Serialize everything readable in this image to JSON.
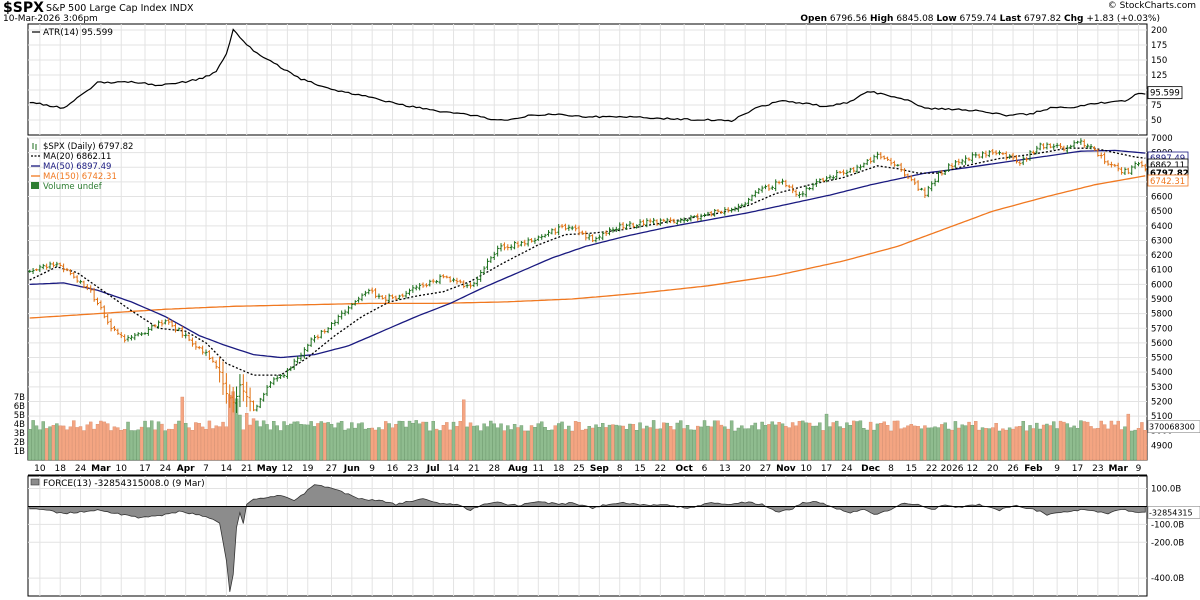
{
  "header": {
    "symbol": "$SPX",
    "name": "S&P 500 Large Cap Index",
    "exchange": "INDX",
    "date": "10-Mar-2026 3:06pm",
    "watermark": "© StockCharts.com",
    "open_label": "Open",
    "open": "6796.56",
    "high_label": "High",
    "high": "6845.08",
    "low_label": "Low",
    "low": "6759.74",
    "last_label": "Last",
    "last": "6797.82",
    "chg_label": "Chg",
    "chg": "+1.83 (+0.03%)"
  },
  "chart_data": [
    {
      "type": "line",
      "panel": "ATR",
      "title": "ATR(14) 95.599",
      "current_label": "95.599",
      "ylim": [
        25,
        210
      ],
      "y_ticks": [
        50,
        75,
        100,
        125,
        150,
        175,
        200
      ],
      "knots": [
        [
          0,
          80
        ],
        [
          10,
          70
        ],
        [
          15,
          90
        ],
        [
          20,
          112
        ],
        [
          30,
          114
        ],
        [
          38,
          108
        ],
        [
          44,
          112
        ],
        [
          50,
          118
        ],
        [
          55,
          130
        ],
        [
          58,
          160
        ],
        [
          60,
          200
        ],
        [
          62,
          188
        ],
        [
          66,
          165
        ],
        [
          72,
          145
        ],
        [
          80,
          118
        ],
        [
          90,
          100
        ],
        [
          100,
          88
        ],
        [
          110,
          75
        ],
        [
          120,
          65
        ],
        [
          130,
          58
        ],
        [
          138,
          50
        ],
        [
          142,
          50
        ],
        [
          148,
          58
        ],
        [
          155,
          60
        ],
        [
          165,
          55
        ],
        [
          172,
          56
        ],
        [
          180,
          54
        ],
        [
          190,
          52
        ],
        [
          200,
          50
        ],
        [
          207,
          48
        ],
        [
          210,
          58
        ],
        [
          215,
          72
        ],
        [
          222,
          82
        ],
        [
          228,
          78
        ],
        [
          235,
          72
        ],
        [
          242,
          80
        ],
        [
          247,
          98
        ],
        [
          250,
          95
        ],
        [
          258,
          85
        ],
        [
          264,
          70
        ],
        [
          272,
          68
        ],
        [
          280,
          65
        ],
        [
          288,
          58
        ],
        [
          295,
          60
        ],
        [
          302,
          72
        ],
        [
          307,
          70
        ],
        [
          314,
          78
        ],
        [
          318,
          80
        ],
        [
          323,
          82
        ],
        [
          327,
          95
        ],
        [
          329,
          93
        ]
      ],
      "grid": true
    },
    {
      "type": "ohlc",
      "panel": "price",
      "title": "$SPX (Daily) 6797.82",
      "legend": [
        {
          "name": "$SPX (Daily) 6797.82",
          "color": "#000000"
        },
        {
          "name": "MA(20) 6862.11",
          "color": "#000000",
          "style": "dotted"
        },
        {
          "name": "MA(50) 6897.49",
          "color": "#1a1a80"
        },
        {
          "name": "MA(150) 6742.31",
          "color": "#f07820"
        },
        {
          "name": "Volume undef",
          "color": "#2e7d32"
        }
      ],
      "right_labels": [
        "6897.49",
        "6862.11",
        "6797.82",
        "6742.31"
      ],
      "ylim": [
        4800,
        7000
      ],
      "y_ticks": [
        4900,
        5000,
        5100,
        5200,
        5300,
        5400,
        5500,
        5600,
        5700,
        5800,
        5900,
        6000,
        6100,
        6200,
        6300,
        6400,
        6500,
        6600,
        6700,
        6800,
        6900,
        7000
      ],
      "close_knots": [
        [
          0,
          6100
        ],
        [
          8,
          6140
        ],
        [
          12,
          6080
        ],
        [
          18,
          5950
        ],
        [
          24,
          5700
        ],
        [
          28,
          5620
        ],
        [
          34,
          5680
        ],
        [
          40,
          5750
        ],
        [
          46,
          5650
        ],
        [
          52,
          5520
        ],
        [
          56,
          5400
        ],
        [
          58,
          5250
        ],
        [
          60,
          5200
        ],
        [
          62,
          5300
        ],
        [
          66,
          5150
        ],
        [
          72,
          5350
        ],
        [
          76,
          5400
        ],
        [
          82,
          5600
        ],
        [
          88,
          5700
        ],
        [
          94,
          5850
        ],
        [
          100,
          5950
        ],
        [
          104,
          5900
        ],
        [
          110,
          5920
        ],
        [
          116,
          6000
        ],
        [
          122,
          6050
        ],
        [
          130,
          5980
        ],
        [
          138,
          6250
        ],
        [
          146,
          6280
        ],
        [
          152,
          6350
        ],
        [
          160,
          6400
        ],
        [
          166,
          6300
        ],
        [
          172,
          6380
        ],
        [
          180,
          6420
        ],
        [
          188,
          6430
        ],
        [
          196,
          6460
        ],
        [
          204,
          6500
        ],
        [
          210,
          6550
        ],
        [
          216,
          6650
        ],
        [
          222,
          6700
        ],
        [
          226,
          6600
        ],
        [
          232,
          6700
        ],
        [
          238,
          6750
        ],
        [
          244,
          6800
        ],
        [
          250,
          6880
        ],
        [
          256,
          6820
        ],
        [
          260,
          6700
        ],
        [
          264,
          6620
        ],
        [
          268,
          6750
        ],
        [
          274,
          6850
        ],
        [
          280,
          6880
        ],
        [
          286,
          6900
        ],
        [
          292,
          6830
        ],
        [
          298,
          6950
        ],
        [
          306,
          6930
        ],
        [
          310,
          6980
        ],
        [
          316,
          6870
        ],
        [
          320,
          6800
        ],
        [
          324,
          6760
        ],
        [
          327,
          6840
        ],
        [
          329,
          6798
        ]
      ],
      "ma20_knots": [
        [
          0,
          6030
        ],
        [
          8,
          6120
        ],
        [
          14,
          6080
        ],
        [
          22,
          5950
        ],
        [
          30,
          5820
        ],
        [
          38,
          5700
        ],
        [
          46,
          5680
        ],
        [
          52,
          5600
        ],
        [
          58,
          5460
        ],
        [
          66,
          5380
        ],
        [
          74,
          5380
        ],
        [
          82,
          5500
        ],
        [
          90,
          5650
        ],
        [
          98,
          5780
        ],
        [
          106,
          5880
        ],
        [
          114,
          5920
        ],
        [
          122,
          5950
        ],
        [
          130,
          6020
        ],
        [
          140,
          6150
        ],
        [
          150,
          6270
        ],
        [
          158,
          6340
        ],
        [
          166,
          6350
        ],
        [
          174,
          6370
        ],
        [
          184,
          6410
        ],
        [
          194,
          6450
        ],
        [
          204,
          6490
        ],
        [
          212,
          6540
        ],
        [
          220,
          6620
        ],
        [
          230,
          6680
        ],
        [
          240,
          6730
        ],
        [
          250,
          6810
        ],
        [
          256,
          6790
        ],
        [
          262,
          6760
        ],
        [
          268,
          6760
        ],
        [
          276,
          6810
        ],
        [
          286,
          6860
        ],
        [
          296,
          6890
        ],
        [
          306,
          6930
        ],
        [
          314,
          6930
        ],
        [
          320,
          6900
        ],
        [
          326,
          6870
        ],
        [
          329,
          6862
        ]
      ],
      "ma50_knots": [
        [
          0,
          6000
        ],
        [
          10,
          6010
        ],
        [
          20,
          5960
        ],
        [
          30,
          5880
        ],
        [
          40,
          5780
        ],
        [
          50,
          5650
        ],
        [
          58,
          5580
        ],
        [
          66,
          5520
        ],
        [
          74,
          5500
        ],
        [
          84,
          5520
        ],
        [
          94,
          5580
        ],
        [
          104,
          5680
        ],
        [
          114,
          5780
        ],
        [
          124,
          5870
        ],
        [
          134,
          5980
        ],
        [
          144,
          6080
        ],
        [
          154,
          6180
        ],
        [
          164,
          6260
        ],
        [
          176,
          6330
        ],
        [
          188,
          6390
        ],
        [
          200,
          6440
        ],
        [
          212,
          6490
        ],
        [
          224,
          6550
        ],
        [
          236,
          6610
        ],
        [
          248,
          6680
        ],
        [
          256,
          6720
        ],
        [
          264,
          6760
        ],
        [
          274,
          6790
        ],
        [
          286,
          6830
        ],
        [
          298,
          6870
        ],
        [
          310,
          6910
        ],
        [
          320,
          6915
        ],
        [
          329,
          6897
        ]
      ],
      "ma150_knots": [
        [
          0,
          5770
        ],
        [
          20,
          5800
        ],
        [
          40,
          5830
        ],
        [
          60,
          5850
        ],
        [
          80,
          5860
        ],
        [
          100,
          5870
        ],
        [
          120,
          5870
        ],
        [
          140,
          5880
        ],
        [
          160,
          5900
        ],
        [
          180,
          5940
        ],
        [
          200,
          5990
        ],
        [
          220,
          6060
        ],
        [
          240,
          6160
        ],
        [
          256,
          6260
        ],
        [
          270,
          6380
        ],
        [
          284,
          6500
        ],
        [
          300,
          6600
        ],
        [
          314,
          6680
        ],
        [
          329,
          6742
        ]
      ],
      "volume": {
        "labels": [
          "7B",
          "6B",
          "5B",
          "4B",
          "3B",
          "2B",
          "1B"
        ],
        "values_b": [
          7,
          6,
          5,
          4,
          3,
          2,
          1
        ],
        "ylim_b": [
          0,
          14
        ],
        "current_label": "370068300",
        "spikes": [
          [
            45,
            7.0
          ],
          [
            59,
            7.2
          ],
          [
            60,
            7.6
          ],
          [
            61,
            6.8
          ],
          [
            62,
            5.0
          ],
          [
            64,
            5.2
          ],
          [
            66,
            4.6
          ],
          [
            92,
            4.3
          ],
          [
            128,
            6.7
          ],
          [
            162,
            4.2
          ],
          [
            235,
            5.1
          ],
          [
            297,
            4.1
          ],
          [
            324,
            5.1
          ],
          [
            355,
            5.6
          ],
          [
            367,
            5.3
          ]
        ]
      },
      "x_labels": [
        "10",
        "18",
        "24",
        "Mar",
        "10",
        "17",
        "24",
        "Apr",
        "7",
        "14",
        "21",
        "May",
        "12",
        "19",
        "27",
        "Jun",
        "9",
        "16",
        "23",
        "Jul",
        "14",
        "21",
        "28",
        "Aug",
        "11",
        "18",
        "25",
        "Sep",
        "8",
        "15",
        "22",
        "Oct",
        "6",
        "13",
        "20",
        "27",
        "Nov",
        "10",
        "17",
        "24",
        "Dec",
        "8",
        "15",
        "22",
        "2026",
        "12",
        "20",
        "26",
        "Feb",
        "9",
        "17",
        "23",
        "Mar",
        "9"
      ]
    },
    {
      "type": "area",
      "panel": "FORCE",
      "title": "FORCE(13) -32854315008.0 (9 Mar)",
      "current_label": "-32854315",
      "ylim": [
        -500,
        170
      ],
      "y_ticks": [
        100,
        -100,
        -200,
        -400
      ],
      "tick_labels": [
        "100.0B",
        "-100.0B",
        "-200.0B",
        "-400.0B"
      ],
      "knots": [
        [
          0,
          -10
        ],
        [
          6,
          -25
        ],
        [
          10,
          -40
        ],
        [
          16,
          -30
        ],
        [
          20,
          -20
        ],
        [
          26,
          -40
        ],
        [
          32,
          -60
        ],
        [
          38,
          -55
        ],
        [
          44,
          -30
        ],
        [
          48,
          -40
        ],
        [
          52,
          -60
        ],
        [
          56,
          -90
        ],
        [
          58,
          -300
        ],
        [
          59,
          -480
        ],
        [
          60,
          -380
        ],
        [
          61,
          -120
        ],
        [
          62,
          -30
        ],
        [
          63,
          -100
        ],
        [
          64,
          10
        ],
        [
          66,
          40
        ],
        [
          70,
          50
        ],
        [
          74,
          60
        ],
        [
          78,
          30
        ],
        [
          84,
          120
        ],
        [
          88,
          110
        ],
        [
          92,
          80
        ],
        [
          98,
          40
        ],
        [
          104,
          30
        ],
        [
          108,
          10
        ],
        [
          112,
          30
        ],
        [
          116,
          45
        ],
        [
          120,
          20
        ],
        [
          126,
          10
        ],
        [
          130,
          -20
        ],
        [
          134,
          10
        ],
        [
          138,
          20
        ],
        [
          144,
          5
        ],
        [
          150,
          30
        ],
        [
          156,
          10
        ],
        [
          160,
          20
        ],
        [
          166,
          -10
        ],
        [
          170,
          10
        ],
        [
          176,
          20
        ],
        [
          182,
          5
        ],
        [
          188,
          10
        ],
        [
          194,
          -10
        ],
        [
          200,
          20
        ],
        [
          206,
          10
        ],
        [
          212,
          25
        ],
        [
          216,
          10
        ],
        [
          220,
          -30
        ],
        [
          224,
          -20
        ],
        [
          228,
          20
        ],
        [
          232,
          30
        ],
        [
          238,
          -10
        ],
        [
          242,
          -35
        ],
        [
          246,
          -20
        ],
        [
          250,
          -45
        ],
        [
          254,
          -15
        ],
        [
          258,
          20
        ],
        [
          262,
          10
        ],
        [
          266,
          -20
        ],
        [
          270,
          10
        ],
        [
          274,
          -5
        ],
        [
          280,
          10
        ],
        [
          286,
          -20
        ],
        [
          290,
          5
        ],
        [
          296,
          -15
        ],
        [
          300,
          -45
        ],
        [
          304,
          -30
        ],
        [
          310,
          -20
        ],
        [
          314,
          -25
        ],
        [
          318,
          -40
        ],
        [
          322,
          -15
        ],
        [
          326,
          -33
        ],
        [
          329,
          -33
        ]
      ],
      "grid": true
    }
  ]
}
